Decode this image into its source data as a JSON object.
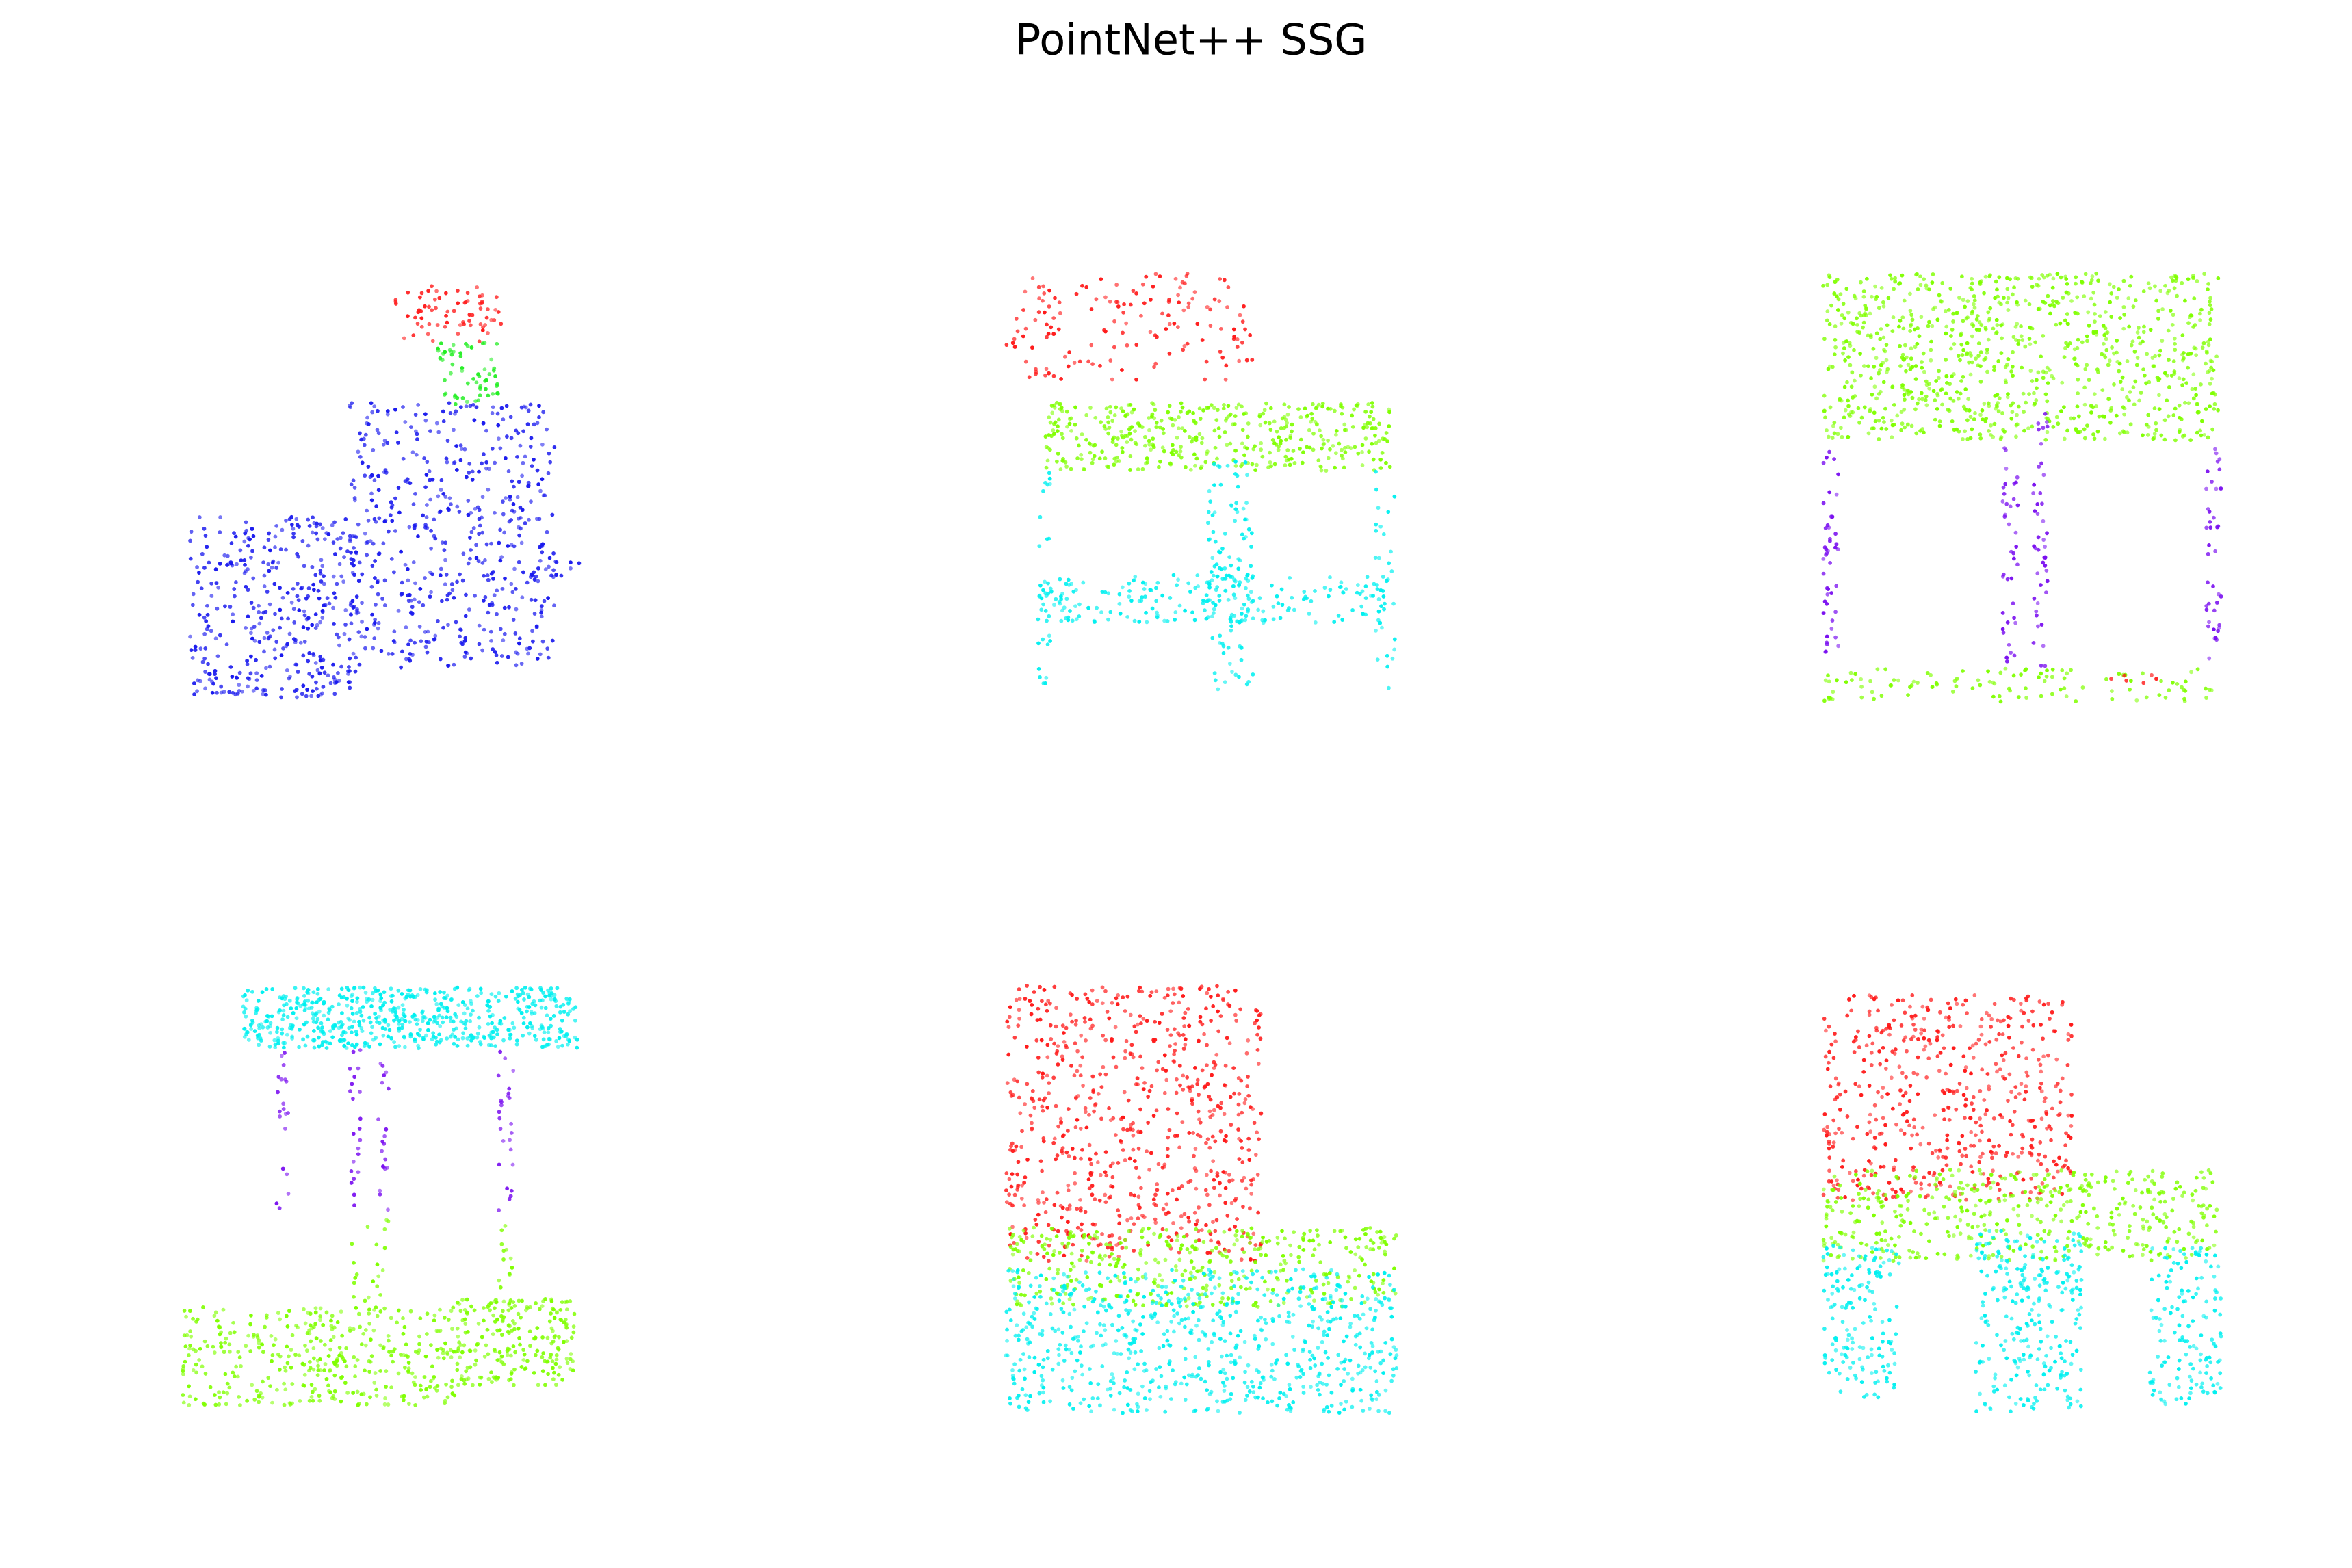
{
  "title": "PointNet++ SSG"
}
